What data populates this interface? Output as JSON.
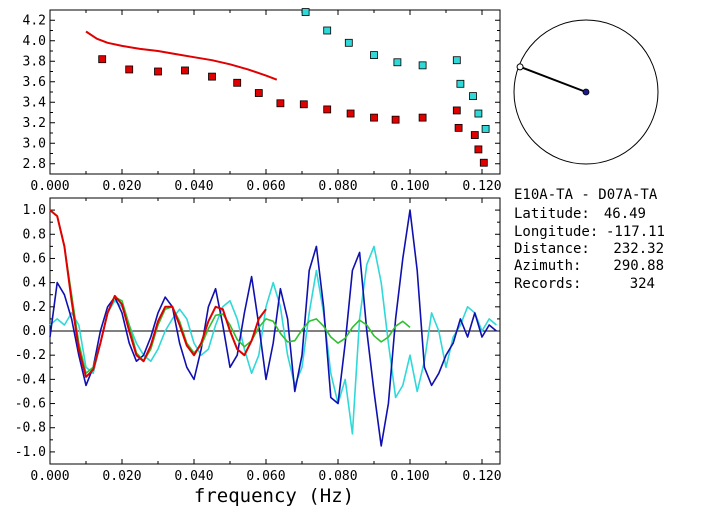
{
  "colors": {
    "red": "#e00000",
    "blue": "#1010b0",
    "cyan": "#30d8d8",
    "green": "#30c030",
    "navy": "#1a1a8c",
    "axis": "#000000"
  },
  "info": {
    "pair": "E10A-TA - D07A-TA",
    "latitude_label": "Latitude:",
    "latitude_value": "46.49",
    "longitude_label": "Longitude:",
    "longitude_value": "-117.11",
    "distance_label": "Distance:",
    "distance_value": "232.32",
    "azimuth_label": "Azimuth:",
    "azimuth_value": "290.88",
    "records_label": "Records:",
    "records_value": "324"
  },
  "chart_data": [
    {
      "type": "scatter",
      "title": "",
      "xlabel": "",
      "ylabel": "",
      "xlim": [
        0.0,
        0.125
      ],
      "ylim": [
        2.7,
        4.3
      ],
      "x_ticks": [
        "0.000",
        "0.020",
        "0.040",
        "0.060",
        "0.080",
        "0.100",
        "0.120"
      ],
      "y_ticks": [
        "2.8",
        "3.0",
        "3.2",
        "3.4",
        "3.6",
        "3.8",
        "4.0",
        "4.2"
      ],
      "series": [
        {
          "kind": "line",
          "color": "red",
          "x": [
            0.01,
            0.013,
            0.016,
            0.02,
            0.025,
            0.03,
            0.035,
            0.04,
            0.045,
            0.05,
            0.055,
            0.06,
            0.063
          ],
          "y": [
            4.09,
            4.02,
            3.98,
            3.95,
            3.92,
            3.9,
            3.87,
            3.84,
            3.81,
            3.77,
            3.72,
            3.66,
            3.62
          ]
        },
        {
          "kind": "markers",
          "color": "red",
          "x": [
            0.0145,
            0.022,
            0.03,
            0.0375,
            0.045,
            0.052,
            0.058,
            0.064,
            0.0705,
            0.077,
            0.0835,
            0.09,
            0.096,
            0.1035,
            0.113,
            0.1135,
            0.118,
            0.119,
            0.1205
          ],
          "y": [
            3.82,
            3.72,
            3.7,
            3.71,
            3.65,
            3.59,
            3.49,
            3.39,
            3.38,
            3.33,
            3.29,
            3.25,
            3.23,
            3.25,
            3.32,
            3.15,
            3.08,
            2.94,
            2.81
          ]
        },
        {
          "kind": "markers",
          "color": "cyan",
          "x": [
            0.071,
            0.077,
            0.083,
            0.09,
            0.0965,
            0.1035,
            0.113,
            0.114,
            0.1175,
            0.119,
            0.121
          ],
          "y": [
            4.28,
            4.1,
            3.98,
            3.86,
            3.79,
            3.76,
            3.81,
            3.58,
            3.46,
            3.29,
            3.14
          ]
        }
      ]
    },
    {
      "type": "line",
      "title": "",
      "xlabel": "frequency (Hz)",
      "ylabel": "",
      "xlim": [
        0.0,
        0.125
      ],
      "ylim": [
        -1.1,
        1.1
      ],
      "x_ticks": [
        "0.000",
        "0.020",
        "0.040",
        "0.060",
        "0.080",
        "0.100",
        "0.120"
      ],
      "y_ticks": [
        "-1.0",
        "-0.8",
        "-0.6",
        "-0.4",
        "-0.2",
        "0.0",
        "0.2",
        "0.4",
        "0.6",
        "0.8",
        "1.0"
      ],
      "series": [
        {
          "color": "cyan",
          "x": [
            0.0,
            0.002,
            0.004,
            0.006,
            0.008,
            0.01,
            0.012,
            0.014,
            0.016,
            0.018,
            0.02,
            0.022,
            0.024,
            0.026,
            0.028,
            0.03,
            0.032,
            0.034,
            0.036,
            0.038,
            0.04,
            0.042,
            0.044,
            0.046,
            0.048,
            0.05,
            0.052,
            0.054,
            0.056,
            0.058,
            0.06,
            0.062,
            0.064,
            0.066,
            0.068,
            0.07,
            0.072,
            0.074,
            0.076,
            0.078,
            0.08,
            0.082,
            0.084,
            0.086,
            0.088,
            0.09,
            0.092,
            0.094,
            0.096,
            0.098,
            0.1,
            0.102,
            0.104,
            0.106,
            0.108,
            0.11,
            0.112,
            0.114,
            0.116,
            0.118,
            0.12,
            0.122,
            0.124
          ],
          "y": [
            0.05,
            0.1,
            0.05,
            0.15,
            0.05,
            -0.3,
            -0.35,
            -0.1,
            0.15,
            0.25,
            0.2,
            0.05,
            -0.1,
            -0.2,
            -0.25,
            -0.15,
            0.0,
            0.1,
            0.18,
            0.1,
            -0.1,
            -0.2,
            -0.15,
            0.05,
            0.2,
            0.25,
            0.1,
            -0.15,
            -0.35,
            -0.2,
            0.2,
            0.4,
            0.2,
            -0.2,
            -0.45,
            -0.3,
            0.15,
            0.5,
            0.15,
            -0.35,
            -0.6,
            -0.4,
            -0.85,
            0.1,
            0.55,
            0.7,
            0.4,
            -0.1,
            -0.55,
            -0.45,
            -0.2,
            -0.5,
            -0.25,
            0.15,
            0.0,
            -0.3,
            -0.05,
            0.05,
            0.2,
            0.15,
            0.0,
            0.1,
            0.05
          ]
        },
        {
          "color": "blue",
          "x": [
            0.0,
            0.002,
            0.004,
            0.006,
            0.008,
            0.01,
            0.012,
            0.014,
            0.016,
            0.018,
            0.02,
            0.022,
            0.024,
            0.026,
            0.028,
            0.03,
            0.032,
            0.034,
            0.036,
            0.038,
            0.04,
            0.042,
            0.044,
            0.046,
            0.048,
            0.05,
            0.052,
            0.054,
            0.056,
            0.058,
            0.06,
            0.062,
            0.064,
            0.066,
            0.068,
            0.07,
            0.072,
            0.074,
            0.076,
            0.078,
            0.08,
            0.082,
            0.084,
            0.086,
            0.088,
            0.09,
            0.092,
            0.094,
            0.096,
            0.098,
            0.1,
            0.102,
            0.104,
            0.106,
            0.108,
            0.11,
            0.112,
            0.114,
            0.116,
            0.118,
            0.12,
            0.122,
            0.124
          ],
          "y": [
            -0.05,
            0.4,
            0.3,
            0.1,
            -0.2,
            -0.45,
            -0.3,
            0.0,
            0.2,
            0.28,
            0.15,
            -0.1,
            -0.25,
            -0.2,
            -0.05,
            0.15,
            0.28,
            0.2,
            -0.1,
            -0.3,
            -0.4,
            -0.15,
            0.2,
            0.35,
            0.05,
            -0.3,
            -0.2,
            0.15,
            0.45,
            0.05,
            -0.4,
            -0.1,
            0.35,
            0.1,
            -0.5,
            -0.2,
            0.5,
            0.7,
            0.2,
            -0.55,
            -0.6,
            -0.1,
            0.5,
            0.65,
            0.0,
            -0.5,
            -0.95,
            -0.6,
            0.1,
            0.6,
            1.0,
            0.5,
            -0.3,
            -0.45,
            -0.35,
            -0.2,
            -0.1,
            0.1,
            -0.05,
            0.15,
            -0.05,
            0.05,
            0.0
          ]
        },
        {
          "color": "green",
          "x": [
            0.0,
            0.002,
            0.004,
            0.006,
            0.008,
            0.01,
            0.012,
            0.014,
            0.016,
            0.018,
            0.02,
            0.022,
            0.024,
            0.026,
            0.028,
            0.03,
            0.032,
            0.034,
            0.036,
            0.038,
            0.04,
            0.042,
            0.044,
            0.046,
            0.048,
            0.05,
            0.052,
            0.054,
            0.056,
            0.058,
            0.06,
            0.062,
            0.064,
            0.066,
            0.068,
            0.07,
            0.072,
            0.074,
            0.076,
            0.078,
            0.08,
            0.082,
            0.084,
            0.086,
            0.088,
            0.09,
            0.092,
            0.094,
            0.096,
            0.098,
            0.1
          ],
          "y": [
            1.0,
            0.95,
            0.7,
            0.3,
            -0.1,
            -0.35,
            -0.3,
            -0.1,
            0.15,
            0.28,
            0.25,
            0.05,
            -0.18,
            -0.25,
            -0.15,
            0.05,
            0.18,
            0.2,
            0.08,
            -0.1,
            -0.18,
            -0.12,
            0.02,
            0.13,
            0.14,
            0.05,
            -0.07,
            -0.13,
            -0.08,
            0.03,
            0.1,
            0.08,
            -0.02,
            -0.09,
            -0.08,
            0.01,
            0.08,
            0.1,
            0.04,
            -0.05,
            -0.1,
            -0.06,
            0.03,
            0.09,
            0.05,
            -0.04,
            -0.09,
            -0.05,
            0.04,
            0.08,
            0.03
          ]
        },
        {
          "color": "red",
          "x": [
            0.0,
            0.002,
            0.004,
            0.006,
            0.008,
            0.01,
            0.012,
            0.014,
            0.016,
            0.018,
            0.02,
            0.022,
            0.024,
            0.026,
            0.028,
            0.03,
            0.032,
            0.034,
            0.036,
            0.038,
            0.04,
            0.042,
            0.044,
            0.046,
            0.048,
            0.05,
            0.052,
            0.054,
            0.056,
            0.058,
            0.06
          ],
          "y": [
            1.0,
            0.95,
            0.7,
            0.25,
            -0.15,
            -0.38,
            -0.32,
            -0.1,
            0.15,
            0.29,
            0.22,
            0.0,
            -0.2,
            -0.25,
            -0.12,
            0.08,
            0.2,
            0.2,
            0.05,
            -0.12,
            -0.2,
            -0.1,
            0.08,
            0.2,
            0.18,
            0.0,
            -0.15,
            -0.2,
            -0.08,
            0.1,
            0.18
          ]
        }
      ]
    },
    {
      "type": "polar",
      "azimuth_deg": 290.88,
      "relative_length": 0.98
    }
  ]
}
